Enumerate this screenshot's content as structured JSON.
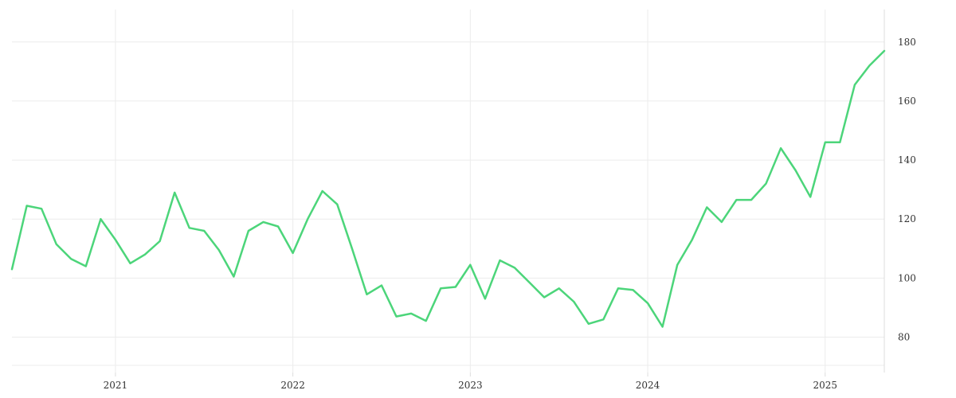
{
  "chart_data": {
    "type": "line",
    "title": "",
    "xlabel": "",
    "ylabel": "",
    "x_ticks": [
      "2021",
      "2022",
      "2023",
      "2024",
      "2025"
    ],
    "y_ticks": [
      80,
      100,
      120,
      140,
      160,
      180
    ],
    "xlim": [
      "2020-06",
      "2025-05"
    ],
    "ylim": [
      68,
      191
    ],
    "grid": true,
    "y_axis_side": "right",
    "legend": "none",
    "series_color": "#4cd57a",
    "x": [
      "2020-06",
      "2020-07",
      "2020-08",
      "2020-09",
      "2020-10",
      "2020-11",
      "2020-12",
      "2021-01",
      "2021-02",
      "2021-03",
      "2021-04",
      "2021-05",
      "2021-06",
      "2021-07",
      "2021-08",
      "2021-09",
      "2021-10",
      "2021-11",
      "2021-12",
      "2022-01",
      "2022-02",
      "2022-03",
      "2022-04",
      "2022-05",
      "2022-06",
      "2022-07",
      "2022-08",
      "2022-09",
      "2022-10",
      "2022-11",
      "2022-12",
      "2023-01",
      "2023-02",
      "2023-03",
      "2023-04",
      "2023-05",
      "2023-06",
      "2023-07",
      "2023-08",
      "2023-09",
      "2023-10",
      "2023-11",
      "2023-12",
      "2024-01",
      "2024-02",
      "2024-03",
      "2024-04",
      "2024-05",
      "2024-06",
      "2024-07",
      "2024-08",
      "2024-09",
      "2024-10",
      "2024-11",
      "2024-12",
      "2025-01",
      "2025-02",
      "2025-03",
      "2025-04",
      "2025-05"
    ],
    "series": [
      {
        "values": [
          103,
          124.5,
          123.5,
          111.5,
          106.5,
          104,
          120,
          113,
          105,
          108,
          112.5,
          129,
          117,
          116,
          109.5,
          100.5,
          116,
          119,
          117.5,
          108.5,
          120,
          129.5,
          125,
          110,
          94.5,
          97.5,
          87,
          88,
          85.5,
          96.5,
          97,
          104.5,
          93,
          106,
          103.5,
          98.5,
          93.5,
          96.5,
          92,
          84.5,
          86,
          96.5,
          96,
          91.5,
          83.5,
          104.5,
          113,
          124,
          119,
          126.5,
          126.5,
          132,
          144,
          136.5,
          127.5,
          146,
          146,
          165.5,
          172,
          177
        ]
      }
    ]
  }
}
